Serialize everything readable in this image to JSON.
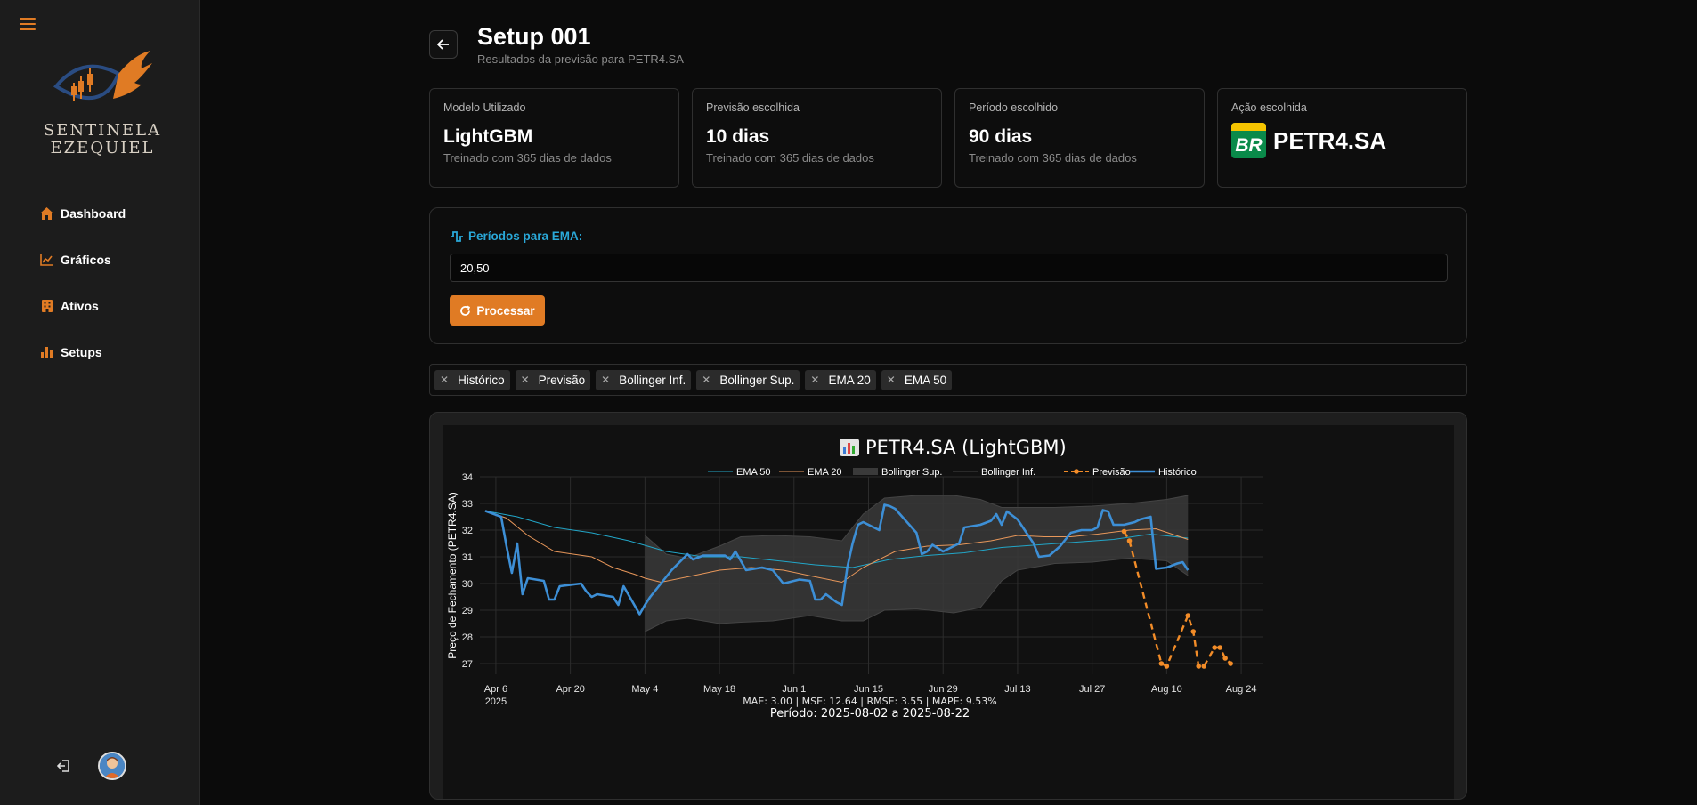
{
  "sidebar": {
    "brand_line1": "SENTINELA",
    "brand_line2": "EZEQUIEL",
    "items": [
      {
        "label": "Dashboard",
        "icon": "home-icon"
      },
      {
        "label": "Gráficos",
        "icon": "line-chart-icon"
      },
      {
        "label": "Ativos",
        "icon": "building-icon"
      },
      {
        "label": "Setups",
        "icon": "bar-chart-icon"
      }
    ]
  },
  "header": {
    "title": "Setup 001",
    "subtitle": "Resultados da previsão para PETR4.SA"
  },
  "cards": [
    {
      "label": "Modelo Utilizado",
      "value": "LightGBM",
      "sub": "Treinado com 365 dias de dados"
    },
    {
      "label": "Previsão escolhida",
      "value": "10 dias",
      "sub": "Treinado com 365 dias de dados"
    },
    {
      "label": "Período escolhido",
      "value": "90 dias",
      "sub": "Treinado com 365 dias de dados"
    },
    {
      "label": "Ação escolhida",
      "value": "PETR4.SA",
      "logo_text": "BR"
    }
  ],
  "ema": {
    "label": "Períodos para EMA:",
    "value": "20,50",
    "button": "Processar"
  },
  "filters": [
    "Histórico",
    "Previsão",
    "Bollinger Inf.",
    "Bollinger Sup.",
    "EMA 20",
    "EMA 50"
  ],
  "colors": {
    "accent": "#e07b24",
    "ema_label": "#2aa8d8",
    "historico": "#3d8fd6",
    "previsao": "#f28c28",
    "ema20": "#e8975a",
    "ema50": "#22a6c8",
    "bollinger_fill": "#3a3a3a"
  },
  "chart_data": {
    "type": "line",
    "title": "PETR4.SA (LightGBM)",
    "ylabel": "Preço de Fechamento (PETR4.SA)",
    "ylim": [
      26.6,
      34
    ],
    "xlim": [
      "2025-04-03",
      "2025-08-28"
    ],
    "yticks": [
      27,
      28,
      29,
      30,
      31,
      32,
      33,
      34
    ],
    "xticks": [
      {
        "date": "2025-04-06",
        "label": "Apr 6",
        "label2": "2025"
      },
      {
        "date": "2025-04-20",
        "label": "Apr 20"
      },
      {
        "date": "2025-05-04",
        "label": "May 4"
      },
      {
        "date": "2025-05-18",
        "label": "May 18"
      },
      {
        "date": "2025-06-01",
        "label": "Jun 1"
      },
      {
        "date": "2025-06-15",
        "label": "Jun 15"
      },
      {
        "date": "2025-06-29",
        "label": "Jun 29"
      },
      {
        "date": "2025-07-13",
        "label": "Jul 13"
      },
      {
        "date": "2025-07-27",
        "label": "Jul 27"
      },
      {
        "date": "2025-08-10",
        "label": "Aug 10"
      },
      {
        "date": "2025-08-24",
        "label": "Aug 24"
      }
    ],
    "legend": [
      "EMA 50",
      "EMA 20",
      "Bollinger Sup.",
      "Bollinger Inf.",
      "Previsão",
      "Histórico"
    ],
    "legend_position": "top",
    "grid": true,
    "footer_metrics": "MAE: 3.00 | MSE: 12.64 | RMSE: 3.55 | MAPE: 9.53%",
    "footer_period": "Período: 2025-08-02 a 2025-08-22",
    "series": [
      {
        "name": "Histórico",
        "style": "solid",
        "points": [
          [
            "2025-04-04",
            32.72
          ],
          [
            "2025-04-07",
            32.5
          ],
          [
            "2025-04-08",
            31.4
          ],
          [
            "2025-04-09",
            30.4
          ],
          [
            "2025-04-10",
            31.5
          ],
          [
            "2025-04-11",
            29.6
          ],
          [
            "2025-04-12",
            30.2
          ],
          [
            "2025-04-15",
            30.1
          ],
          [
            "2025-04-16",
            29.4
          ],
          [
            "2025-04-17",
            29.4
          ],
          [
            "2025-04-18",
            29.9
          ],
          [
            "2025-04-22",
            30.0
          ],
          [
            "2025-04-23",
            29.7
          ],
          [
            "2025-04-24",
            29.5
          ],
          [
            "2025-04-25",
            29.6
          ],
          [
            "2025-04-28",
            29.5
          ],
          [
            "2025-04-29",
            29.2
          ],
          [
            "2025-04-30",
            29.9
          ],
          [
            "2025-05-02",
            29.2
          ],
          [
            "2025-05-03",
            28.85
          ],
          [
            "2025-05-04",
            29.2
          ],
          [
            "2025-05-05",
            29.5
          ],
          [
            "2025-05-07",
            30.0
          ],
          [
            "2025-05-09",
            30.5
          ],
          [
            "2025-05-12",
            31.1
          ],
          [
            "2025-05-13",
            30.9
          ],
          [
            "2025-05-15",
            31.05
          ],
          [
            "2025-05-19",
            31.05
          ],
          [
            "2025-05-20",
            30.9
          ],
          [
            "2025-05-21",
            31.2
          ],
          [
            "2025-05-23",
            30.5
          ],
          [
            "2025-05-26",
            30.6
          ],
          [
            "2025-05-28",
            30.5
          ],
          [
            "2025-05-30",
            30.0
          ],
          [
            "2025-06-02",
            30.15
          ],
          [
            "2025-06-04",
            30.1
          ],
          [
            "2025-06-05",
            29.4
          ],
          [
            "2025-06-06",
            29.4
          ],
          [
            "2025-06-07",
            29.6
          ],
          [
            "2025-06-09",
            29.3
          ],
          [
            "2025-06-10",
            29.2
          ],
          [
            "2025-06-11",
            30.6
          ],
          [
            "2025-06-12",
            31.5
          ],
          [
            "2025-06-13",
            32.2
          ],
          [
            "2025-06-14",
            32.3
          ],
          [
            "2025-06-17",
            32.0
          ],
          [
            "2025-06-18",
            32.95
          ],
          [
            "2025-06-19",
            32.9
          ],
          [
            "2025-06-20",
            32.8
          ],
          [
            "2025-06-24",
            31.9
          ],
          [
            "2025-06-25",
            31.1
          ],
          [
            "2025-06-26",
            31.2
          ],
          [
            "2025-06-27",
            31.45
          ],
          [
            "2025-06-29",
            31.2
          ],
          [
            "2025-06-30",
            31.3
          ],
          [
            "2025-07-02",
            31.5
          ],
          [
            "2025-07-03",
            32.1
          ],
          [
            "2025-07-06",
            32.2
          ],
          [
            "2025-07-08",
            32.35
          ],
          [
            "2025-07-09",
            32.6
          ],
          [
            "2025-07-10",
            32.2
          ],
          [
            "2025-07-11",
            32.7
          ],
          [
            "2025-07-13",
            32.4
          ],
          [
            "2025-07-14",
            32.1
          ],
          [
            "2025-07-16",
            31.5
          ],
          [
            "2025-07-17",
            31.0
          ],
          [
            "2025-07-19",
            31.05
          ],
          [
            "2025-07-21",
            31.4
          ],
          [
            "2025-07-23",
            31.9
          ],
          [
            "2025-07-25",
            32.0
          ],
          [
            "2025-07-27",
            32.0
          ],
          [
            "2025-07-28",
            32.1
          ],
          [
            "2025-07-29",
            32.75
          ],
          [
            "2025-07-30",
            32.7
          ],
          [
            "2025-07-31",
            32.2
          ],
          [
            "2025-08-02",
            32.2
          ],
          [
            "2025-08-04",
            32.3
          ],
          [
            "2025-08-05",
            32.4
          ],
          [
            "2025-08-06",
            32.45
          ],
          [
            "2025-08-07",
            32.5
          ],
          [
            "2025-08-08",
            30.55
          ],
          [
            "2025-08-10",
            30.6
          ],
          [
            "2025-08-12",
            30.75
          ],
          [
            "2025-08-13",
            30.8
          ],
          [
            "2025-08-14",
            30.5
          ]
        ]
      },
      {
        "name": "Previsão",
        "style": "dashed-markers",
        "points": [
          [
            "2025-08-02",
            31.95
          ],
          [
            "2025-08-03",
            31.6
          ],
          [
            "2025-08-09",
            27.0
          ],
          [
            "2025-08-10",
            26.9
          ],
          [
            "2025-08-14",
            28.8
          ],
          [
            "2025-08-15",
            28.2
          ],
          [
            "2025-08-16",
            26.9
          ],
          [
            "2025-08-17",
            26.9
          ],
          [
            "2025-08-19",
            27.6
          ],
          [
            "2025-08-20",
            27.6
          ],
          [
            "2025-08-21",
            27.2
          ],
          [
            "2025-08-22",
            27.0
          ]
        ]
      },
      {
        "name": "EMA 20",
        "style": "thin",
        "points": [
          [
            "2025-04-04",
            32.72
          ],
          [
            "2025-04-08",
            32.45
          ],
          [
            "2025-04-12",
            31.8
          ],
          [
            "2025-04-17",
            31.2
          ],
          [
            "2025-04-24",
            31.0
          ],
          [
            "2025-04-28",
            30.6
          ],
          [
            "2025-05-02",
            30.35
          ],
          [
            "2025-05-04",
            30.2
          ],
          [
            "2025-05-07",
            30.05
          ],
          [
            "2025-05-12",
            30.25
          ],
          [
            "2025-05-18",
            30.5
          ],
          [
            "2025-05-24",
            30.6
          ],
          [
            "2025-05-30",
            30.5
          ],
          [
            "2025-06-05",
            30.25
          ],
          [
            "2025-06-10",
            30.05
          ],
          [
            "2025-06-14",
            30.6
          ],
          [
            "2025-06-20",
            31.2
          ],
          [
            "2025-06-26",
            31.4
          ],
          [
            "2025-07-02",
            31.45
          ],
          [
            "2025-07-08",
            31.6
          ],
          [
            "2025-07-13",
            31.8
          ],
          [
            "2025-07-18",
            31.75
          ],
          [
            "2025-07-23",
            31.75
          ],
          [
            "2025-07-28",
            31.85
          ],
          [
            "2025-08-03",
            32.0
          ],
          [
            "2025-08-08",
            32.05
          ],
          [
            "2025-08-14",
            31.65
          ]
        ]
      },
      {
        "name": "EMA 50",
        "style": "thin",
        "points": [
          [
            "2025-04-04",
            32.72
          ],
          [
            "2025-04-10",
            32.5
          ],
          [
            "2025-04-17",
            32.1
          ],
          [
            "2025-04-24",
            31.9
          ],
          [
            "2025-05-01",
            31.6
          ],
          [
            "2025-05-08",
            31.2
          ],
          [
            "2025-05-15",
            31.0
          ],
          [
            "2025-05-22",
            31.0
          ],
          [
            "2025-05-29",
            30.85
          ],
          [
            "2025-06-05",
            30.7
          ],
          [
            "2025-06-12",
            30.6
          ],
          [
            "2025-06-19",
            30.9
          ],
          [
            "2025-06-26",
            31.05
          ],
          [
            "2025-07-03",
            31.15
          ],
          [
            "2025-07-10",
            31.35
          ],
          [
            "2025-07-17",
            31.45
          ],
          [
            "2025-07-24",
            31.55
          ],
          [
            "2025-07-31",
            31.65
          ],
          [
            "2025-08-07",
            31.85
          ],
          [
            "2025-08-14",
            31.7
          ]
        ]
      },
      {
        "name": "Bollinger Sup.",
        "style": "band-upper",
        "points": [
          [
            "2025-05-04",
            31.8
          ],
          [
            "2025-05-08",
            31.1
          ],
          [
            "2025-05-12",
            30.95
          ],
          [
            "2025-05-18",
            31.4
          ],
          [
            "2025-05-22",
            31.75
          ],
          [
            "2025-05-28",
            31.8
          ],
          [
            "2025-06-04",
            31.75
          ],
          [
            "2025-06-10",
            31.6
          ],
          [
            "2025-06-14",
            32.6
          ],
          [
            "2025-06-18",
            33.2
          ],
          [
            "2025-06-24",
            33.3
          ],
          [
            "2025-07-01",
            33.3
          ],
          [
            "2025-07-06",
            33.15
          ],
          [
            "2025-07-10",
            32.85
          ],
          [
            "2025-07-13",
            32.85
          ],
          [
            "2025-07-20",
            32.85
          ],
          [
            "2025-07-27",
            32.9
          ],
          [
            "2025-08-03",
            33.0
          ],
          [
            "2025-08-10",
            33.15
          ],
          [
            "2025-08-14",
            33.3
          ]
        ]
      },
      {
        "name": "Bollinger Inf.",
        "style": "band-lower",
        "points": [
          [
            "2025-05-04",
            28.2
          ],
          [
            "2025-05-08",
            28.6
          ],
          [
            "2025-05-12",
            28.7
          ],
          [
            "2025-05-18",
            28.5
          ],
          [
            "2025-05-22",
            28.55
          ],
          [
            "2025-05-28",
            28.6
          ],
          [
            "2025-06-04",
            28.8
          ],
          [
            "2025-06-10",
            28.6
          ],
          [
            "2025-06-14",
            28.6
          ],
          [
            "2025-06-18",
            29.0
          ],
          [
            "2025-06-24",
            29.05
          ],
          [
            "2025-07-01",
            28.9
          ],
          [
            "2025-07-06",
            29.1
          ],
          [
            "2025-07-10",
            30.1
          ],
          [
            "2025-07-13",
            30.5
          ],
          [
            "2025-07-20",
            30.75
          ],
          [
            "2025-07-27",
            30.8
          ],
          [
            "2025-08-03",
            30.95
          ],
          [
            "2025-08-10",
            30.85
          ],
          [
            "2025-08-14",
            30.3
          ]
        ]
      }
    ]
  }
}
